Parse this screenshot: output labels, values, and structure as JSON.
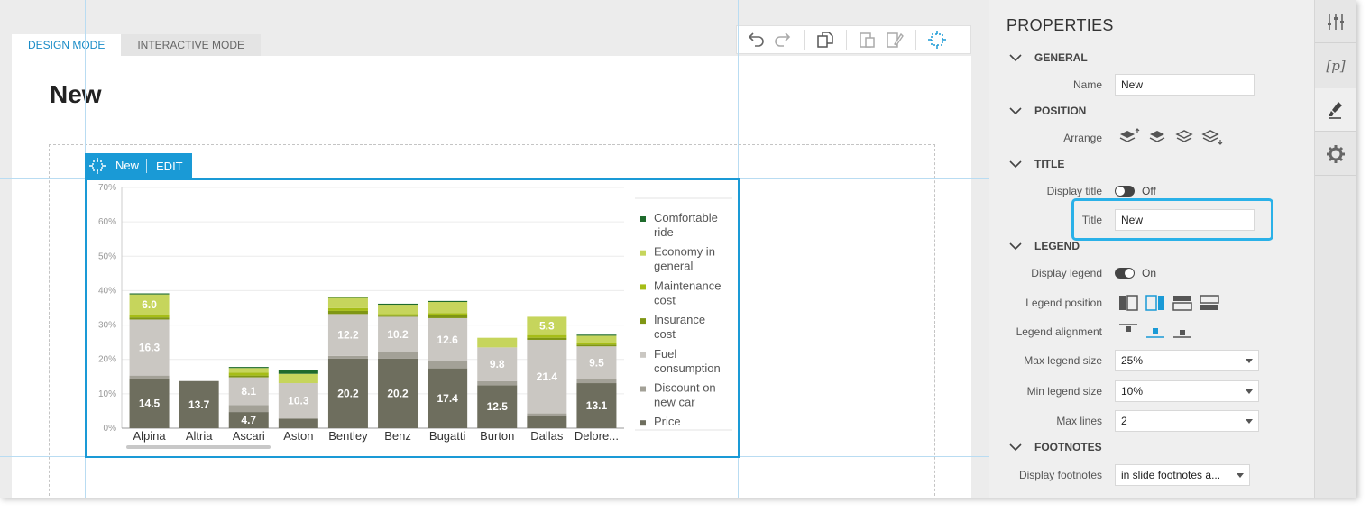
{
  "mode_tabs": {
    "design": "DESIGN MODE",
    "interactive": "INTERACTIVE MODE"
  },
  "slide": {
    "title": "New"
  },
  "chart_tag": {
    "name": "New",
    "edit": "EDIT"
  },
  "toolbar": {
    "icons": [
      "undo-icon",
      "redo-icon",
      "copy-icon",
      "paste-icon",
      "paste-format-icon",
      "select-object-icon"
    ]
  },
  "chart_data": {
    "type": "bar",
    "stacked": true,
    "categories": [
      "Alpina",
      "Altria",
      "Ascari",
      "Aston",
      "Bentley",
      "Benz",
      "Bugatti",
      "Burton",
      "Dallas",
      "Delore..."
    ],
    "y_ticks": [
      "0%",
      "10%",
      "20%",
      "30%",
      "40%",
      "50%",
      "60%",
      "70%"
    ],
    "ylim": [
      0,
      70
    ],
    "series": [
      {
        "name": "Price",
        "color": "#6e6e5e",
        "values": [
          14.5,
          13.7,
          4.7,
          2.8,
          20.2,
          20.2,
          17.4,
          12.5,
          3.6,
          13.1
        ]
      },
      {
        "name": "Discount on new car",
        "color": "#a3a197",
        "values": [
          0.8,
          0,
          2.0,
          0,
          0.8,
          2.0,
          2.0,
          1.2,
          0.7,
          1.2
        ]
      },
      {
        "name": "Fuel consumption",
        "color": "#cac7c2",
        "values": [
          16.3,
          0,
          8.1,
          10.3,
          12.2,
          10.2,
          12.6,
          9.8,
          21.4,
          9.5
        ]
      },
      {
        "name": "Insurance cost",
        "color": "#7f9614",
        "values": [
          0.6,
          0,
          0.5,
          0,
          0.9,
          0.3,
          0.8,
          0,
          0.6,
          0.5
        ]
      },
      {
        "name": "Maintenance cost",
        "color": "#a6bd17",
        "values": [
          0.7,
          0,
          0.9,
          0,
          0.8,
          0.5,
          0.7,
          0,
          0.8,
          0.6
        ]
      },
      {
        "name": "Economy in general",
        "color": "#c6d55c",
        "values": [
          6.0,
          0,
          1.3,
          2.7,
          3.0,
          2.7,
          3.2,
          2.8,
          5.3,
          2.0
        ]
      },
      {
        "name": "Comfortable ride",
        "color": "#1f6b2c",
        "values": [
          0.3,
          0,
          0.3,
          1.2,
          0.3,
          0.3,
          0.3,
          0,
          0,
          0.3
        ]
      }
    ],
    "data_labels": [
      {
        "category": "Alpina",
        "series": "Price",
        "text": "14.5"
      },
      {
        "category": "Alpina",
        "series": "Fuel consumption",
        "text": "16.3"
      },
      {
        "category": "Alpina",
        "series": "Economy in general",
        "text": "6.0"
      },
      {
        "category": "Altria",
        "series": "Price",
        "text": "13.7"
      },
      {
        "category": "Ascari",
        "series": "Price",
        "text": "4.7"
      },
      {
        "category": "Ascari",
        "series": "Fuel consumption",
        "text": "8.1"
      },
      {
        "category": "Aston",
        "series": "Fuel consumption",
        "text": "10.3"
      },
      {
        "category": "Bentley",
        "series": "Price",
        "text": "20.2"
      },
      {
        "category": "Bentley",
        "series": "Fuel consumption",
        "text": "12.2"
      },
      {
        "category": "Benz",
        "series": "Price",
        "text": "20.2"
      },
      {
        "category": "Benz",
        "series": "Fuel consumption",
        "text": "10.2"
      },
      {
        "category": "Bugatti",
        "series": "Price",
        "text": "17.4"
      },
      {
        "category": "Bugatti",
        "series": "Fuel consumption",
        "text": "12.6"
      },
      {
        "category": "Burton",
        "series": "Price",
        "text": "12.5"
      },
      {
        "category": "Burton",
        "series": "Fuel consumption",
        "text": "9.8"
      },
      {
        "category": "Dallas",
        "series": "Fuel consumption",
        "text": "21.4"
      },
      {
        "category": "Dallas",
        "series": "Economy in general",
        "text": "5.3"
      },
      {
        "category": "Delore...",
        "series": "Price",
        "text": "13.1"
      },
      {
        "category": "Delore...",
        "series": "Fuel consumption",
        "text": "9.5"
      }
    ],
    "legend": {
      "placement": "right",
      "entries": [
        {
          "lines": [
            "Comfortable",
            "ride"
          ],
          "color": "#1f6b2c"
        },
        {
          "lines": [
            "Economy in",
            "general"
          ],
          "color": "#c6d55c"
        },
        {
          "lines": [
            "Maintenance",
            "cost"
          ],
          "color": "#a6bd17"
        },
        {
          "lines": [
            "Insurance",
            "cost"
          ],
          "color": "#7f9614"
        },
        {
          "lines": [
            "Fuel",
            "consumption"
          ],
          "color": "#cac7c2"
        },
        {
          "lines": [
            "Discount on",
            "new car"
          ],
          "color": "#a3a197"
        },
        {
          "lines": [
            "Price"
          ],
          "color": "#6e6e5e"
        }
      ]
    },
    "grid": true
  },
  "properties": {
    "heading": "PROPERTIES",
    "general": {
      "label": "GENERAL",
      "name_label": "Name",
      "name_value": "New"
    },
    "position": {
      "label": "POSITION",
      "arrange_label": "Arrange"
    },
    "title_section": {
      "label": "TITLE",
      "display_title_label": "Display title",
      "display_title_state": "Off",
      "title_label": "Title",
      "title_value": "New"
    },
    "legend": {
      "label": "LEGEND",
      "display_legend_label": "Display legend",
      "display_legend_state": "On",
      "position_label": "Legend position",
      "alignment_label": "Legend alignment",
      "max_size_label": "Max legend size",
      "max_size_value": "25%",
      "min_size_label": "Min legend size",
      "min_size_value": "10%",
      "max_lines_label": "Max lines",
      "max_lines_value": "2"
    },
    "footnotes": {
      "label": "FOOTNOTES",
      "display_label": "Display footnotes",
      "display_value": "in slide footnotes a..."
    }
  },
  "colors": {
    "accent": "#1a9ad6",
    "highlight": "#2ab1e8"
  }
}
